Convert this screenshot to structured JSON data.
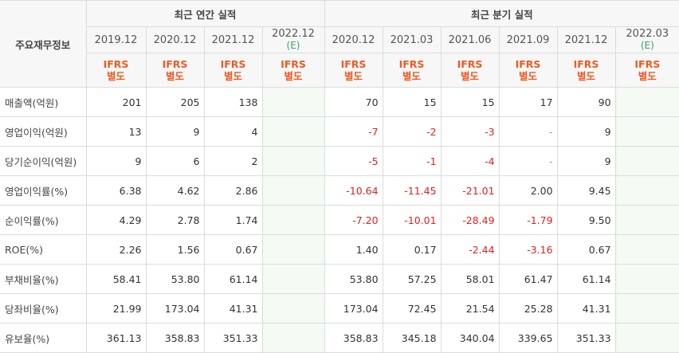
{
  "header": {
    "row_label": "주요재무정보",
    "annual_title": "최근 연간 실적",
    "quarterly_title": "최근 분기 실적"
  },
  "annual_periods": [
    {
      "period": "2019.12",
      "est": ""
    },
    {
      "period": "2020.12",
      "est": ""
    },
    {
      "period": "2021.12",
      "est": ""
    },
    {
      "period": "2022.12",
      "est": "(E)"
    }
  ],
  "quarterly_periods": [
    {
      "period": "2020.12",
      "est": ""
    },
    {
      "period": "2021.03",
      "est": ""
    },
    {
      "period": "2021.06",
      "est": ""
    },
    {
      "period": "2021.09",
      "est": ""
    },
    {
      "period": "2021.12",
      "est": ""
    },
    {
      "period": "2022.03",
      "est": "(E)"
    }
  ],
  "ifrs_label": [
    "IFRS",
    "별도"
  ],
  "rows": [
    {
      "label": "매출액(억원)",
      "values": [
        "201",
        "205",
        "138",
        "",
        "70",
        "15",
        "15",
        "17",
        "90",
        ""
      ]
    },
    {
      "label": "영업이익(억원)",
      "values": [
        "13",
        "9",
        "4",
        "",
        "-7",
        "-2",
        "-3",
        "-",
        "9",
        ""
      ]
    },
    {
      "label": "당기순이익(억원)",
      "values": [
        "9",
        "6",
        "2",
        "",
        "-5",
        "-1",
        "-4",
        "-",
        "9",
        ""
      ]
    },
    {
      "label": "영업이익률(%)",
      "values": [
        "6.38",
        "4.62",
        "2.86",
        "",
        "-10.64",
        "-11.45",
        "-21.01",
        "2.00",
        "9.45",
        ""
      ]
    },
    {
      "label": "순이익률(%)",
      "values": [
        "4.29",
        "2.78",
        "1.74",
        "",
        "-7.20",
        "-10.01",
        "-28.49",
        "-1.79",
        "9.50",
        ""
      ]
    },
    {
      "label": "ROE(%)",
      "values": [
        "2.26",
        "1.56",
        "0.67",
        "",
        "1.40",
        "0.17",
        "-2.44",
        "-3.16",
        "0.67",
        ""
      ]
    },
    {
      "label": "부채비율(%)",
      "values": [
        "58.41",
        "53.80",
        "61.14",
        "",
        "53.80",
        "57.25",
        "58.01",
        "61.47",
        "61.14",
        ""
      ]
    },
    {
      "label": "당좌비율(%)",
      "values": [
        "21.99",
        "173.04",
        "41.31",
        "",
        "173.04",
        "72.45",
        "21.54",
        "25.28",
        "41.31",
        ""
      ]
    },
    {
      "label": "유보율(%)",
      "values": [
        "361.13",
        "358.83",
        "351.33",
        "",
        "358.83",
        "345.18",
        "340.04",
        "339.65",
        "351.33",
        ""
      ]
    }
  ],
  "colors": {
    "ifrs": "#f05a22",
    "negative": "#e02020",
    "estimate": "#3aa35a"
  }
}
